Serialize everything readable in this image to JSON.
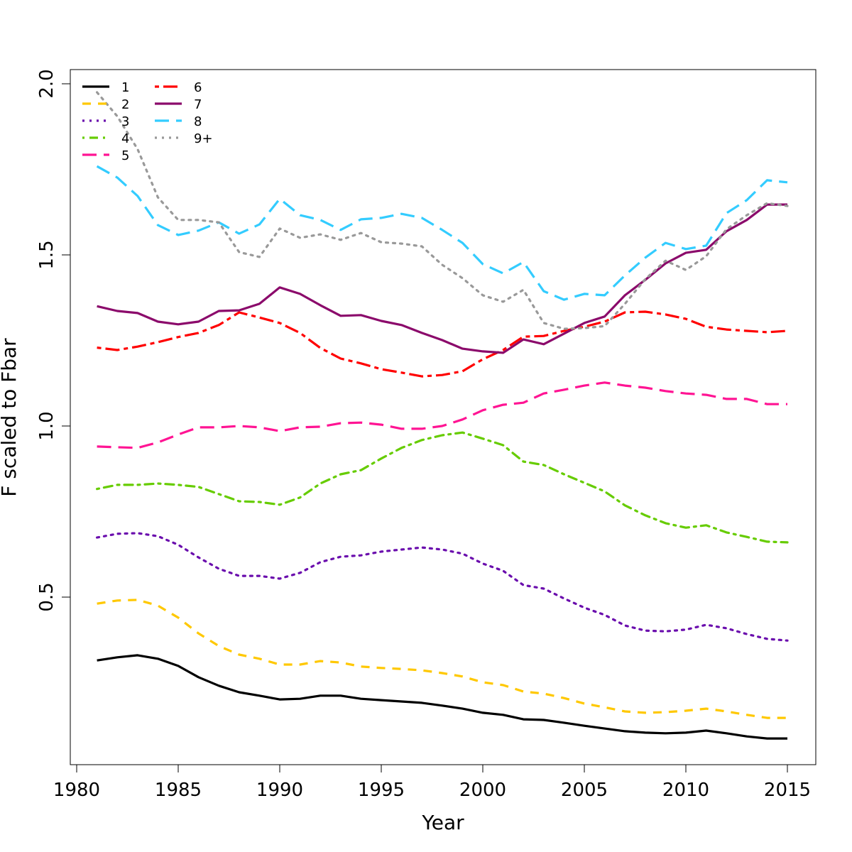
{
  "chart_data": {
    "type": "line",
    "title": "",
    "xlabel": "Year",
    "ylabel": "F scaled to Fbar",
    "xlim": [
      1980,
      2015
    ],
    "ylim": [
      0.07,
      2.0
    ],
    "xticks": [
      "1980",
      "1985",
      "1990",
      "1995",
      "2000",
      "2005",
      "2010",
      "2015"
    ],
    "yticks": [
      "0.5",
      "1.0",
      "1.5",
      "2.0"
    ],
    "grid": false,
    "legend_position": "top-left",
    "x": [
      1981,
      1982,
      1983,
      1984,
      1985,
      1986,
      1987,
      1988,
      1989,
      1990,
      1991,
      1992,
      1993,
      1994,
      1995,
      1996,
      1997,
      1998,
      1999,
      2000,
      2001,
      2002,
      2003,
      2004,
      2005,
      2006,
      2007,
      2008,
      2009,
      2010,
      2011,
      2012,
      2013,
      2014,
      2015
    ],
    "series": [
      {
        "name": "1",
        "color": "#000000",
        "dash": "solid",
        "values": [
          0.315,
          0.324,
          0.33,
          0.32,
          0.299,
          0.266,
          0.241,
          0.222,
          0.212,
          0.201,
          0.203,
          0.212,
          0.212,
          0.203,
          0.199,
          0.195,
          0.191,
          0.183,
          0.174,
          0.162,
          0.156,
          0.143,
          0.141,
          0.133,
          0.124,
          0.116,
          0.108,
          0.104,
          0.102,
          0.104,
          0.11,
          0.102,
          0.093,
          0.087,
          0.087
        ]
      },
      {
        "name": "2",
        "color": "#FFC800",
        "dash": "dashed",
        "values": [
          0.481,
          0.49,
          0.492,
          0.475,
          0.44,
          0.394,
          0.357,
          0.332,
          0.32,
          0.303,
          0.303,
          0.313,
          0.309,
          0.297,
          0.293,
          0.29,
          0.286,
          0.278,
          0.268,
          0.251,
          0.243,
          0.224,
          0.218,
          0.205,
          0.189,
          0.178,
          0.166,
          0.162,
          0.164,
          0.168,
          0.174,
          0.166,
          0.156,
          0.147,
          0.147
        ]
      },
      {
        "name": "3",
        "color": "#6A0DAD",
        "dash": "dotted",
        "values": [
          0.674,
          0.685,
          0.687,
          0.678,
          0.653,
          0.616,
          0.583,
          0.562,
          0.562,
          0.554,
          0.571,
          0.602,
          0.618,
          0.622,
          0.633,
          0.639,
          0.645,
          0.639,
          0.627,
          0.598,
          0.577,
          0.535,
          0.525,
          0.496,
          0.469,
          0.448,
          0.417,
          0.402,
          0.4,
          0.405,
          0.419,
          0.409,
          0.392,
          0.378,
          0.373
        ]
      },
      {
        "name": "4",
        "color": "#66CC00",
        "dash": "dashdot",
        "values": [
          0.816,
          0.828,
          0.828,
          0.832,
          0.828,
          0.822,
          0.801,
          0.78,
          0.778,
          0.77,
          0.791,
          0.832,
          0.859,
          0.871,
          0.905,
          0.936,
          0.959,
          0.973,
          0.981,
          0.963,
          0.944,
          0.896,
          0.886,
          0.859,
          0.834,
          0.809,
          0.768,
          0.739,
          0.716,
          0.703,
          0.71,
          0.689,
          0.676,
          0.662,
          0.66
        ]
      },
      {
        "name": "5",
        "color": "#FF1493",
        "dash": "longdash",
        "values": [
          0.94,
          0.938,
          0.936,
          0.952,
          0.975,
          0.996,
          0.996,
          1.0,
          0.996,
          0.985,
          0.996,
          0.998,
          1.008,
          1.01,
          1.004,
          0.992,
          0.992,
          1.0,
          1.019,
          1.046,
          1.062,
          1.068,
          1.095,
          1.106,
          1.118,
          1.127,
          1.118,
          1.112,
          1.102,
          1.095,
          1.091,
          1.079,
          1.079,
          1.064,
          1.064
        ]
      },
      {
        "name": "6",
        "color": "#FF0000",
        "dash": "twodash",
        "values": [
          1.229,
          1.222,
          1.232,
          1.245,
          1.26,
          1.272,
          1.295,
          1.332,
          1.317,
          1.301,
          1.272,
          1.228,
          1.197,
          1.183,
          1.166,
          1.156,
          1.145,
          1.149,
          1.16,
          1.195,
          1.222,
          1.261,
          1.263,
          1.278,
          1.29,
          1.305,
          1.332,
          1.334,
          1.326,
          1.313,
          1.29,
          1.282,
          1.278,
          1.274,
          1.278
        ]
      },
      {
        "name": "7",
        "color": "#8B0A6B",
        "dash": "solid",
        "values": [
          1.35,
          1.336,
          1.33,
          1.305,
          1.297,
          1.305,
          1.336,
          1.338,
          1.357,
          1.405,
          1.386,
          1.353,
          1.322,
          1.324,
          1.307,
          1.295,
          1.272,
          1.251,
          1.226,
          1.218,
          1.214,
          1.253,
          1.239,
          1.27,
          1.301,
          1.32,
          1.382,
          1.427,
          1.475,
          1.506,
          1.515,
          1.569,
          1.602,
          1.647,
          1.647
        ]
      },
      {
        "name": "8",
        "color": "#33CCFF",
        "dash": "longdash",
        "values": [
          1.759,
          1.726,
          1.672,
          1.587,
          1.558,
          1.571,
          1.595,
          1.562,
          1.589,
          1.664,
          1.616,
          1.602,
          1.573,
          1.604,
          1.608,
          1.62,
          1.608,
          1.573,
          1.535,
          1.473,
          1.446,
          1.479,
          1.394,
          1.369,
          1.386,
          1.382,
          1.44,
          1.492,
          1.535,
          1.517,
          1.527,
          1.622,
          1.66,
          1.718,
          1.712
        ]
      },
      {
        "name": "9+",
        "color": "#999999",
        "dash": "dotted",
        "values": [
          1.975,
          1.905,
          1.809,
          1.668,
          1.602,
          1.602,
          1.595,
          1.508,
          1.494,
          1.577,
          1.55,
          1.56,
          1.544,
          1.564,
          1.537,
          1.533,
          1.525,
          1.471,
          1.432,
          1.382,
          1.363,
          1.398,
          1.301,
          1.284,
          1.286,
          1.292,
          1.357,
          1.429,
          1.483,
          1.456,
          1.496,
          1.575,
          1.616,
          1.651,
          1.643
        ]
      }
    ]
  }
}
